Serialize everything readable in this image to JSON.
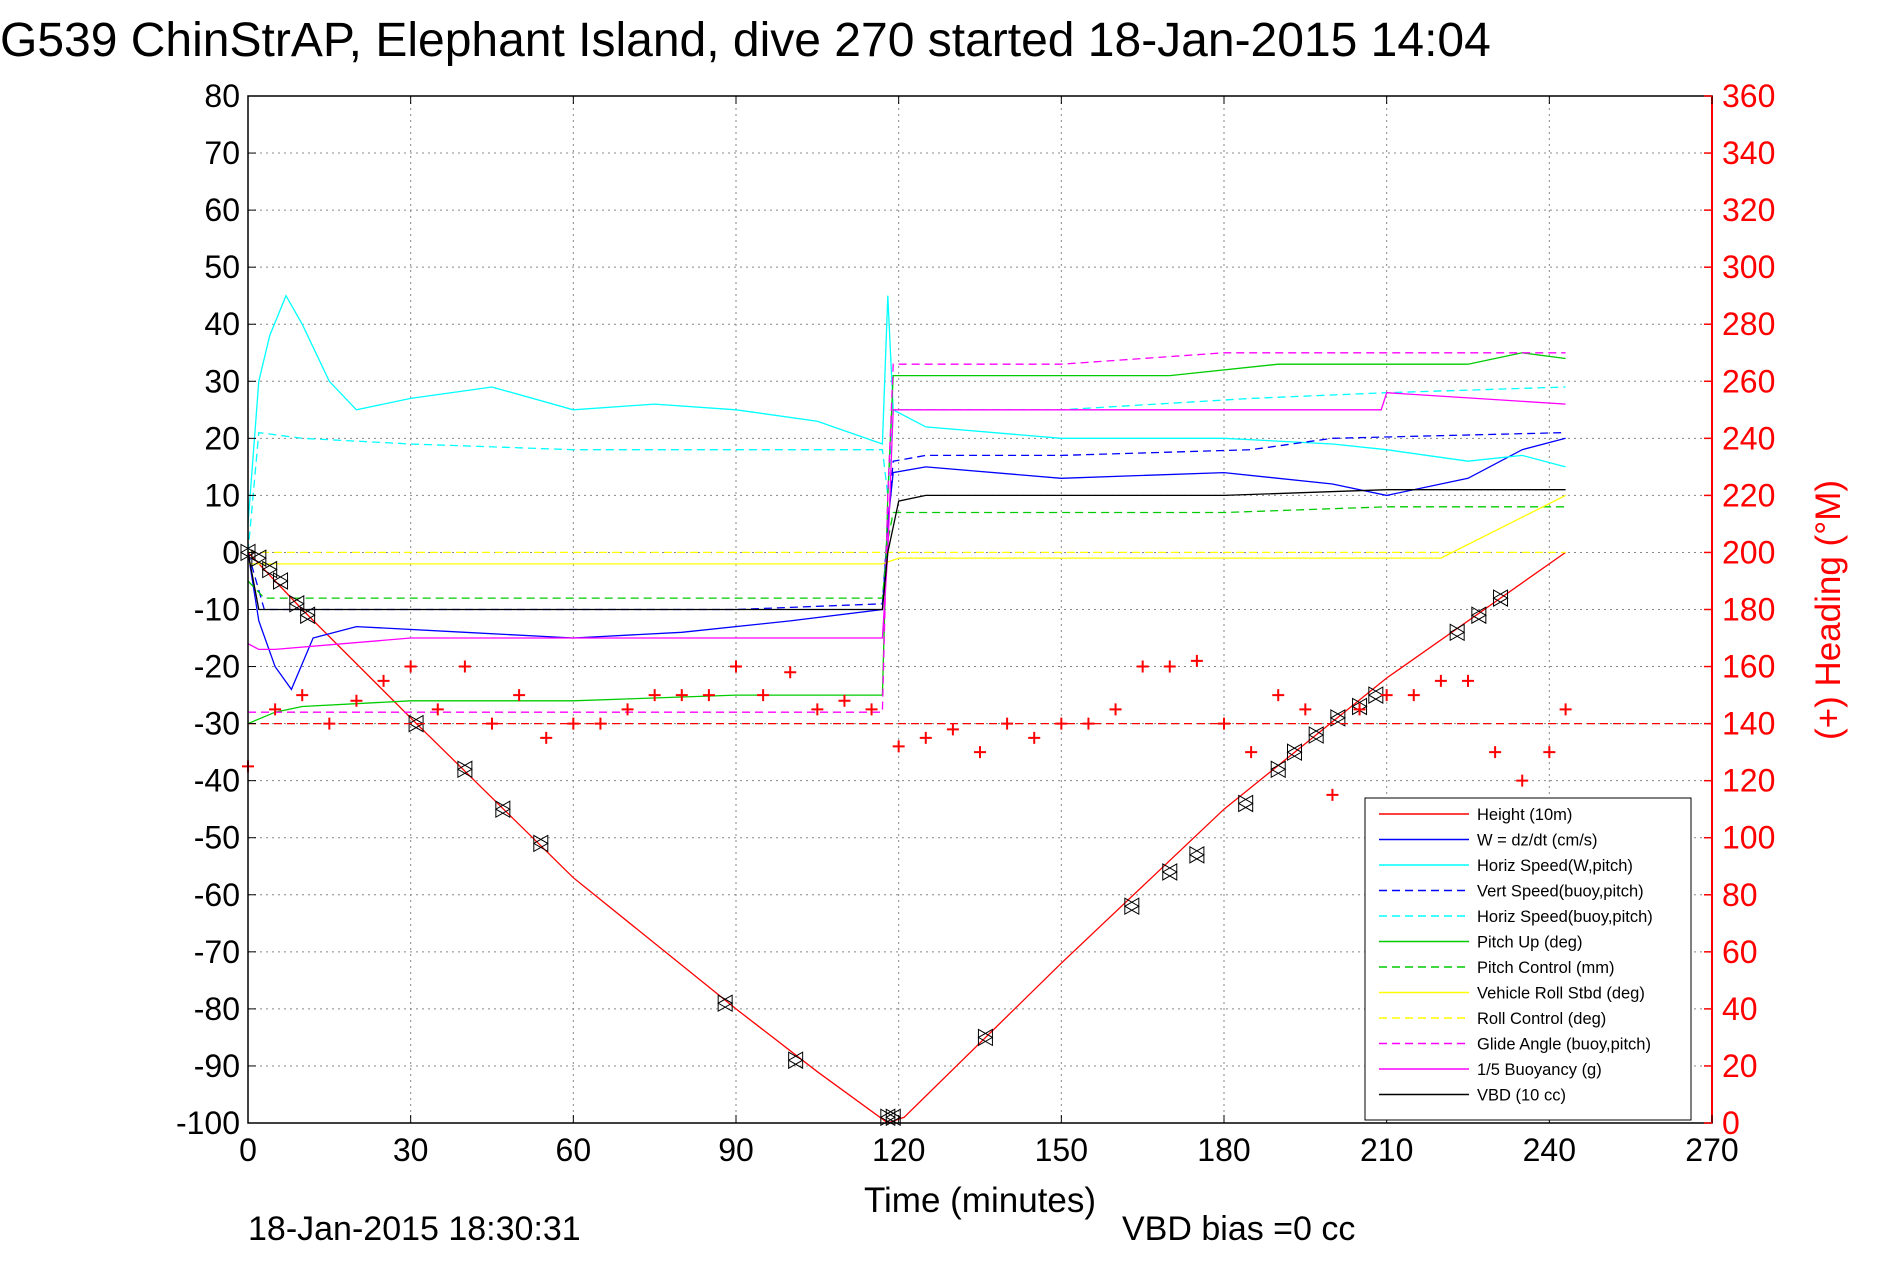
{
  "title": "G539 ChinStrAP, Elephant Island, dive 270 started 18-Jan-2015 14:04",
  "footer_left": "18-Jan-2015 18:30:31",
  "footer_right": "VBD bias =0 cc",
  "colors": {
    "right_axis": "#ff0000",
    "grid": "#888888"
  },
  "chart_data": {
    "type": "line",
    "title": "G539 ChinStrAP, Elephant Island, dive 270 started 18-Jan-2015 14:04",
    "xlabel": "Time (minutes)",
    "ylabel": "",
    "ylabel_right": "(+) Heading (°M)",
    "xlim": [
      0,
      270
    ],
    "ylim": [
      -100,
      80
    ],
    "ylim_right": [
      0,
      360
    ],
    "x_ticks": [
      "0",
      "30",
      "60",
      "90",
      "120",
      "150",
      "180",
      "210",
      "240",
      "270"
    ],
    "y_ticks": [
      "80",
      "70",
      "60",
      "50",
      "40",
      "30",
      "20",
      "10",
      "0",
      "-10",
      "-20",
      "-30",
      "-40",
      "-50",
      "-60",
      "-70",
      "-80",
      "-90",
      "-100"
    ],
    "y_ticks_right": [
      "360",
      "340",
      "320",
      "300",
      "280",
      "260",
      "240",
      "220",
      "200",
      "180",
      "160",
      "140",
      "120",
      "100",
      "80",
      "60",
      "40",
      "20",
      "0"
    ],
    "grid": true,
    "legend_position": "bottom-right",
    "series": [
      {
        "name": "Height (10m)",
        "color": "#ff0000",
        "style": "solid",
        "x": [
          0,
          10,
          30,
          60,
          90,
          105,
          118,
          121,
          150,
          180,
          210,
          243
        ],
        "y": [
          0,
          -10,
          -29,
          -57,
          -80,
          -91,
          -100,
          -99,
          -72,
          -45,
          -22,
          0
        ]
      },
      {
        "name": "W = dz/dt (cm/s)",
        "color": "#0000ff",
        "style": "solid",
        "x": [
          0,
          2,
          5,
          8,
          12,
          20,
          40,
          60,
          80,
          100,
          117,
          118,
          119,
          125,
          150,
          180,
          200,
          210,
          225,
          235,
          243
        ],
        "y": [
          0,
          -12,
          -20,
          -24,
          -15,
          -13,
          -14,
          -15,
          -14,
          -12,
          -10,
          5,
          14,
          15,
          13,
          14,
          12,
          10,
          13,
          18,
          20
        ]
      },
      {
        "name": "Horiz Speed(W,pitch)",
        "color": "#00ffff",
        "style": "solid",
        "x": [
          0,
          2,
          4,
          7,
          10,
          15,
          20,
          30,
          45,
          60,
          75,
          90,
          105,
          117,
          118,
          119,
          125,
          150,
          180,
          200,
          210,
          225,
          235,
          243
        ],
        "y": [
          5,
          30,
          38,
          45,
          40,
          30,
          25,
          27,
          29,
          25,
          26,
          25,
          23,
          19,
          45,
          25,
          22,
          20,
          20,
          19,
          18,
          16,
          17,
          15
        ]
      },
      {
        "name": "Vert Speed(buoy,pitch)",
        "color": "#0000ff",
        "style": "dashed",
        "x": [
          0,
          3,
          10,
          30,
          60,
          90,
          117,
          118,
          119,
          125,
          150,
          185,
          200,
          243
        ],
        "y": [
          0,
          -10,
          -10,
          -10,
          -10,
          -10,
          -9,
          5,
          16,
          17,
          17,
          18,
          20,
          21
        ]
      },
      {
        "name": "Horiz Speed(buoy,pitch)",
        "color": "#00ffff",
        "style": "dashed",
        "x": [
          0,
          2,
          10,
          30,
          60,
          90,
          117,
          118,
          119,
          125,
          150,
          185,
          210,
          243
        ],
        "y": [
          0,
          21,
          20,
          19,
          18,
          18,
          18,
          10,
          25,
          25,
          25,
          27,
          28,
          29
        ]
      },
      {
        "name": "Pitch Up (deg)",
        "color": "#00cc00",
        "style": "solid",
        "x": [
          0,
          5,
          10,
          30,
          60,
          90,
          117,
          118,
          119,
          125,
          150,
          170,
          190,
          210,
          225,
          235,
          243
        ],
        "y": [
          -30,
          -28,
          -27,
          -26,
          -26,
          -25,
          -25,
          10,
          31,
          31,
          31,
          31,
          33,
          33,
          33,
          35,
          34
        ]
      },
      {
        "name": "Pitch Control (mm)",
        "color": "#00cc00",
        "style": "dashed",
        "x": [
          0,
          3,
          10,
          60,
          117,
          118,
          119,
          150,
          180,
          210,
          243
        ],
        "y": [
          -5,
          -8,
          -8,
          -8,
          -8,
          2,
          7,
          7,
          7,
          8,
          8
        ]
      },
      {
        "name": "Vehicle Roll Stbd (deg)",
        "color": "#ffff00",
        "style": "solid",
        "x": [
          0,
          10,
          30,
          60,
          90,
          117,
          120,
          150,
          180,
          200,
          220,
          243
        ],
        "y": [
          -2,
          -2,
          -2,
          -2,
          -2,
          -2,
          -1,
          -1,
          -1,
          -1,
          -1,
          10
        ]
      },
      {
        "name": "Roll Control (deg)",
        "color": "#ffff00",
        "style": "dashed",
        "x": [
          0,
          10,
          60,
          117,
          120,
          180,
          243
        ],
        "y": [
          0,
          0,
          0,
          0,
          0,
          0,
          0
        ]
      },
      {
        "name": "Glide Angle (buoy,pitch)",
        "color": "#ff00ff",
        "style": "dashed",
        "x": [
          0,
          5,
          10,
          60,
          117,
          118,
          119,
          150,
          180,
          210,
          243
        ],
        "y": [
          -28,
          -28,
          -28,
          -28,
          -28,
          10,
          33,
          33,
          35,
          35,
          35
        ]
      },
      {
        "name": "1/5 Buoyancy (g)",
        "color": "#ff00ff",
        "style": "solid",
        "x": [
          0,
          2,
          5,
          30,
          60,
          90,
          117,
          118,
          119,
          150,
          180,
          209,
          210,
          243
        ],
        "y": [
          -16,
          -17,
          -17,
          -15,
          -15,
          -15,
          -15,
          0,
          25,
          25,
          25,
          25,
          28,
          26
        ]
      },
      {
        "name": "VBD (10 cc)",
        "color": "#000000",
        "style": "solid",
        "x": [
          0,
          2,
          117,
          118,
          120,
          125,
          150,
          180,
          210,
          243
        ],
        "y": [
          0,
          -10,
          -10,
          0,
          9,
          10,
          10,
          10,
          11,
          11
        ]
      }
    ],
    "heading": {
      "name": "Heading",
      "axis": "right",
      "color": "#ff0000",
      "marker": "+",
      "x": [
        0,
        5,
        10,
        15,
        20,
        25,
        30,
        35,
        40,
        45,
        50,
        55,
        60,
        65,
        70,
        75,
        80,
        85,
        90,
        95,
        100,
        105,
        110,
        115,
        120,
        125,
        130,
        135,
        140,
        145,
        150,
        155,
        160,
        165,
        170,
        175,
        180,
        185,
        190,
        195,
        200,
        205,
        210,
        215,
        220,
        225,
        230,
        235,
        240,
        243
      ],
      "y": [
        125,
        145,
        150,
        140,
        148,
        155,
        160,
        145,
        160,
        140,
        150,
        135,
        140,
        140,
        145,
        150,
        150,
        150,
        160,
        150,
        158,
        145,
        148,
        145,
        132,
        135,
        138,
        130,
        140,
        135,
        140,
        140,
        145,
        160,
        160,
        162,
        140,
        130,
        150,
        145,
        115,
        145,
        150,
        150,
        155,
        155,
        130,
        120,
        130,
        145
      ]
    },
    "heading_mean": {
      "color": "#ff0000",
      "style": "dashed",
      "value": 140
    },
    "markers": {
      "symbol": "triangle",
      "x": [
        0,
        2,
        4,
        6,
        9,
        11,
        31,
        40,
        47,
        54,
        88,
        101,
        118,
        119,
        136,
        163,
        170,
        175,
        184,
        190,
        193,
        197,
        201,
        205,
        208,
        223,
        227,
        231
      ],
      "y": [
        0,
        -1,
        -3,
        -5,
        -9,
        -11,
        -30,
        -38,
        -45,
        -51,
        -79,
        -89,
        -99,
        -99,
        -85,
        -62,
        -56,
        -53,
        -44,
        -38,
        -35,
        -32,
        -29,
        -27,
        -25,
        -14,
        -11,
        -8
      ]
    }
  }
}
